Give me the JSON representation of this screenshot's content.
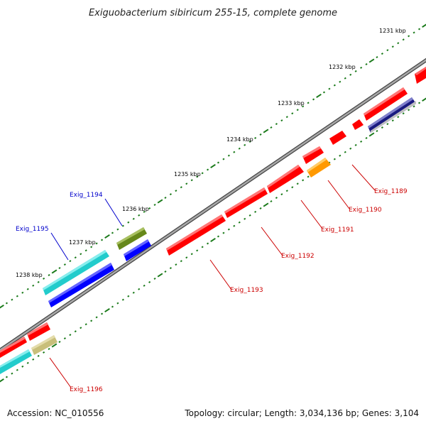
{
  "title": "Exiguobacterium sibiricum 255-15, complete genome",
  "accession": "Accession: NC_010556",
  "summary": "Topology: circular; Length: 3,034,136 bp; Genes: 3,104",
  "ticks": [
    {
      "label": "1231 kbp"
    },
    {
      "label": "1232 kbp"
    },
    {
      "label": "1233 kbp"
    },
    {
      "label": "1234 kbp"
    },
    {
      "label": "1235 kbp"
    },
    {
      "label": "1236 kbp"
    },
    {
      "label": "1237 kbp"
    },
    {
      "label": "1238 kbp"
    }
  ],
  "gene_labels": [
    {
      "label": "Exig_1194",
      "color": "#0000cc"
    },
    {
      "label": "Exig_1195",
      "color": "#0000cc"
    },
    {
      "label": "Exig_1189",
      "color": "#cc0000"
    },
    {
      "label": "Exig_1190",
      "color": "#cc0000"
    },
    {
      "label": "Exig_1191",
      "color": "#cc0000"
    },
    {
      "label": "Exig_1192",
      "color": "#cc0000"
    },
    {
      "label": "Exig_1193",
      "color": "#cc0000"
    },
    {
      "label": "Exig_1196",
      "color": "#cc0000"
    }
  ],
  "colors": {
    "forward_cds": "#ff0000",
    "reverse_cds": "#0000ff",
    "orange_feature": "#ff9900",
    "olive_feature": "#66881a",
    "cyan_feature": "#22cccc",
    "khaki_feature": "#c8bf7a",
    "navy_feature": "#1a1a80",
    "backbone": "#808080",
    "tick": "#1a7a1a"
  }
}
